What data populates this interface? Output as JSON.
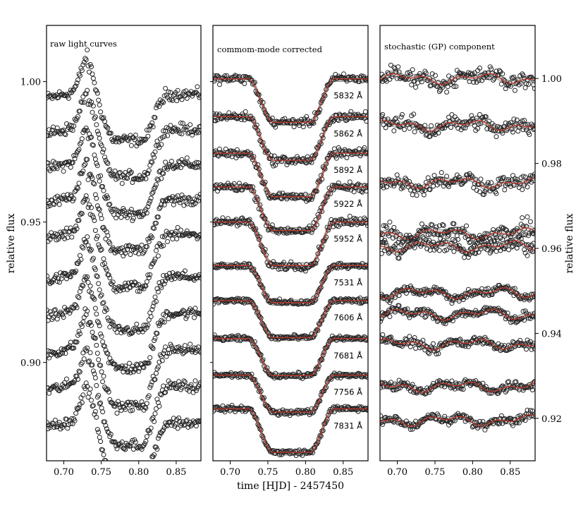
{
  "chart_data": [
    {
      "type": "scatter",
      "title": "raw light curves",
      "xlim": [
        0.677,
        0.883
      ],
      "ylim": [
        0.865,
        1.02
      ],
      "xticks": [
        "0.70",
        "0.75",
        "0.80",
        "0.85"
      ],
      "xtick_values": [
        0.7,
        0.75,
        0.8,
        0.85
      ],
      "yticks": [
        "0.90",
        "0.95",
        "1.00"
      ],
      "ytick_values": [
        0.9,
        0.95,
        1.0
      ],
      "ylabel": "relative flux",
      "curve_offsets": [
        1.0,
        0.9875,
        0.975,
        0.9625,
        0.95,
        0.935,
        0.922,
        0.909,
        0.896,
        0.883
      ],
      "transit_depth": 0.0175,
      "spot_bump_at": 0.732
    },
    {
      "type": "scatter",
      "title": "commom-mode corrected",
      "xlim": [
        0.677,
        0.883
      ],
      "ylim": [
        0.865,
        1.02
      ],
      "xticks": [
        "0.70",
        "0.75",
        "0.80",
        "0.85"
      ],
      "xtick_values": [
        0.7,
        0.75,
        0.8,
        0.85
      ],
      "xlabel": "time [HJD] - 2457450",
      "labels": [
        "5832 Å",
        "5862 Å",
        "5892 Å",
        "5922 Å",
        "5952 Å",
        "7531 Å",
        "7606 Å",
        "7681 Å",
        "7756 Å",
        "7831 Å"
      ],
      "curve_offsets": [
        1.001,
        0.9875,
        0.9745,
        0.9625,
        0.95,
        0.9345,
        0.922,
        0.9085,
        0.8955,
        0.8835
      ],
      "transit_ingress": [
        0.724,
        0.757
      ],
      "transit_egress": [
        0.806,
        0.838
      ],
      "transit_depth": 0.0155,
      "model_color": "#c0392b"
    },
    {
      "type": "scatter",
      "title": "stochastic (GP) component",
      "xlim": [
        0.677,
        0.883
      ],
      "ylim": [
        0.91,
        1.0125
      ],
      "xticks": [
        "0.70",
        "0.75",
        "0.80",
        "0.85"
      ],
      "xtick_values": [
        0.7,
        0.75,
        0.8,
        0.85
      ],
      "yticks": [
        "0.92",
        "0.94",
        "0.96",
        "0.98",
        "1.00"
      ],
      "ytick_values": [
        0.92,
        0.94,
        0.96,
        0.98,
        1.0
      ],
      "ylabel": "relative flux",
      "curve_offsets": [
        1.0,
        0.989,
        0.9755,
        0.9635,
        0.9605,
        0.9495,
        0.9445,
        0.9375,
        0.9275,
        0.9195
      ],
      "model_color": "#c0392b"
    }
  ]
}
